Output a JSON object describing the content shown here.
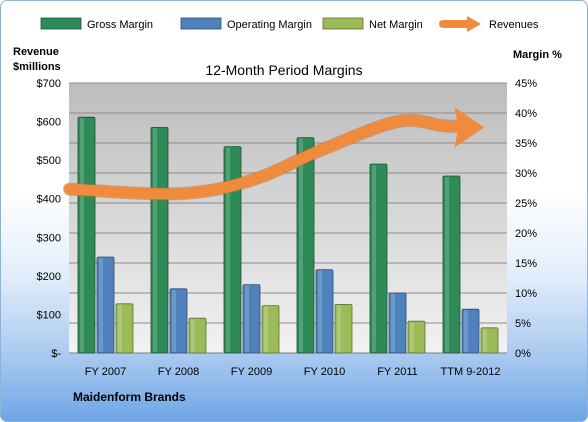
{
  "chart_data": {
    "type": "bar",
    "title": "12-Month Period Margins",
    "categories": [
      "FY 2007",
      "FY 2008",
      "FY 2009",
      "FY 2010",
      "FY 2011",
      "TTM 9-2012"
    ],
    "y_left": {
      "label_line1": "Revenue",
      "label_line2": "$millions",
      "ticks": [
        "$-",
        "$100",
        "$200",
        "$300",
        "$400",
        "$500",
        "$600",
        "$700"
      ],
      "range": [
        0,
        700
      ]
    },
    "y_right": {
      "label": "Margin %",
      "ticks": [
        "0%",
        "5%",
        "10%",
        "15%",
        "20%",
        "25%",
        "30%",
        "35%",
        "40%",
        "45%"
      ],
      "range": [
        0,
        45
      ]
    },
    "series": [
      {
        "name": "Gross Margin",
        "axis": "right",
        "color": "#2e8b57",
        "values": [
          39.3,
          37.6,
          34.4,
          35.9,
          31.5,
          29.5
        ]
      },
      {
        "name": "Operating Margin",
        "axis": "right",
        "color": "#4f81bd",
        "values": [
          16.0,
          10.7,
          11.4,
          13.9,
          10.0,
          7.3
        ]
      },
      {
        "name": "Net Margin",
        "axis": "right",
        "color": "#9bbb59",
        "values": [
          8.2,
          5.8,
          7.9,
          8.1,
          5.3,
          4.2
        ]
      }
    ],
    "trend_arrow": {
      "name": "Revenues",
      "color": "#f08a3c",
      "axis": "left",
      "values": [
        425,
        413,
        448,
        530,
        600,
        590
      ]
    },
    "legend_position": "top",
    "grid": true
  },
  "footer": {
    "company": "Maidenform Brands"
  }
}
